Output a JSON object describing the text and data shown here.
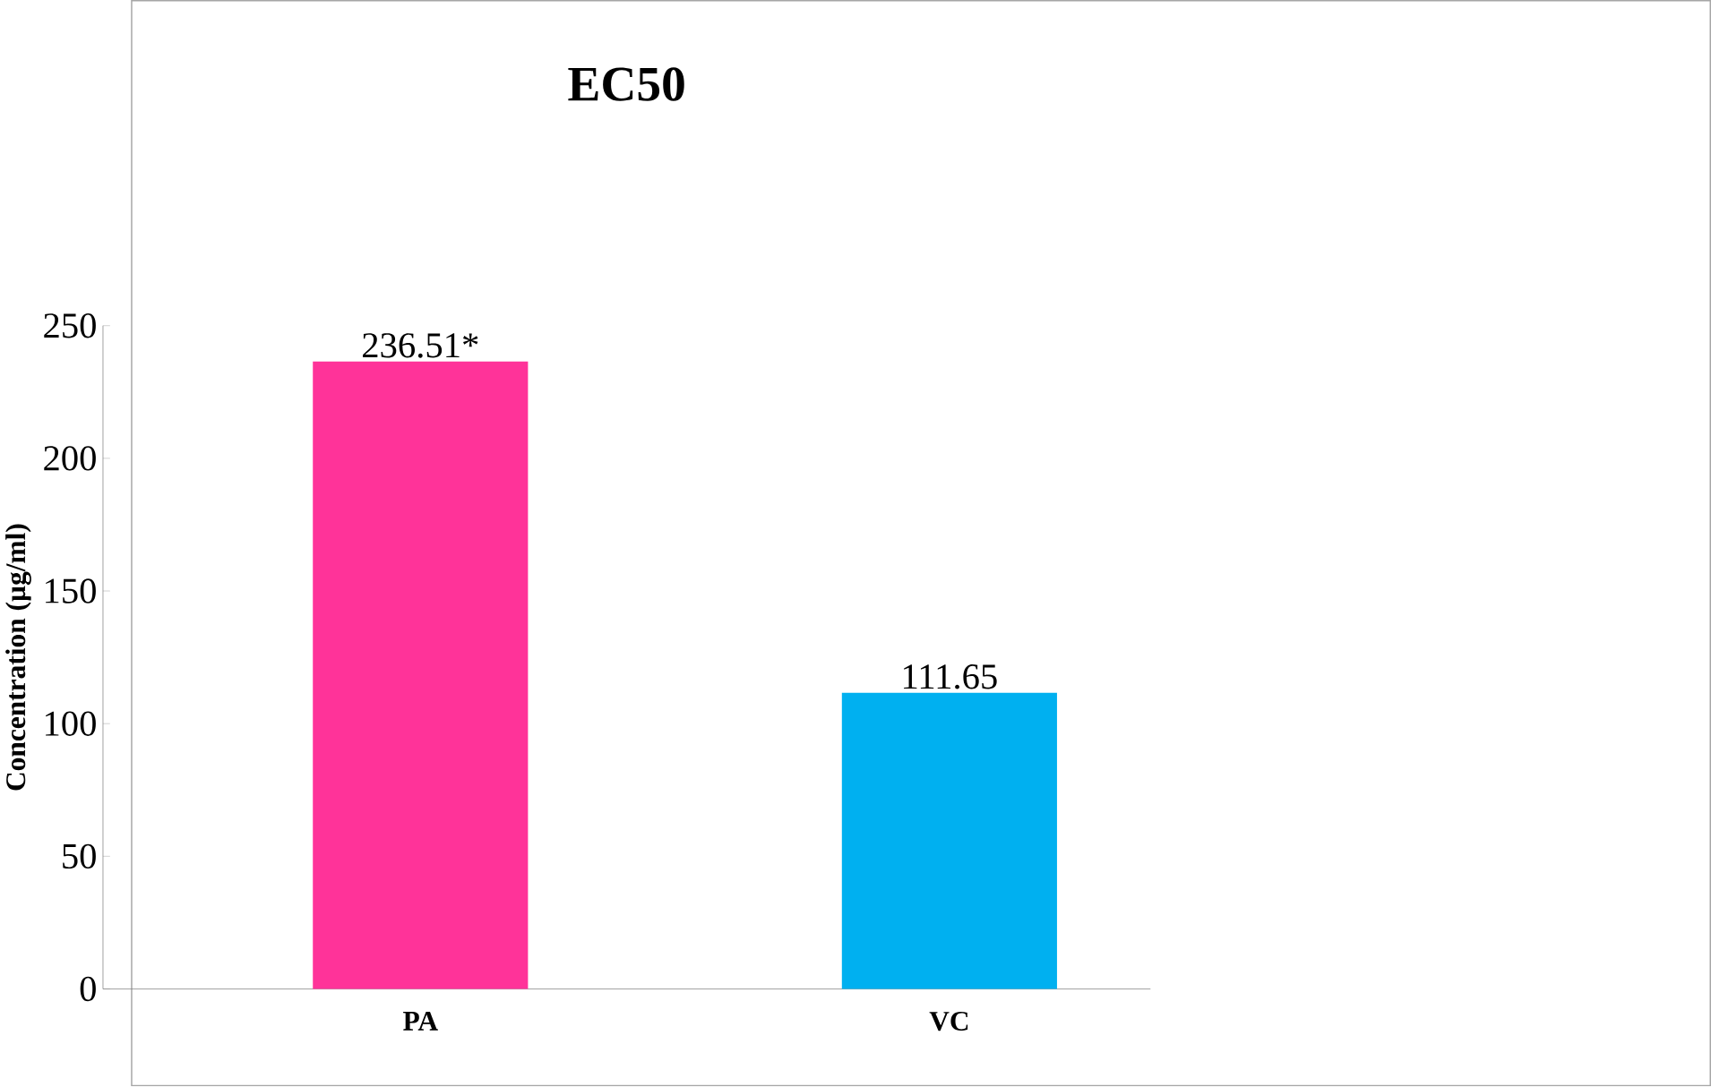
{
  "chart_data": {
    "type": "bar",
    "title": "EC50",
    "ylabel": "Concentration (µg/ml)",
    "categories": [
      "PA",
      "VC"
    ],
    "values": [
      236.51,
      111.65
    ],
    "colors": [
      "#ff3399",
      "#00b0f0"
    ],
    "value_labels": [
      "236.51*",
      "111.65"
    ],
    "ylim": [
      0,
      250
    ],
    "yticks": [
      0,
      50,
      100,
      150,
      200,
      250
    ]
  }
}
